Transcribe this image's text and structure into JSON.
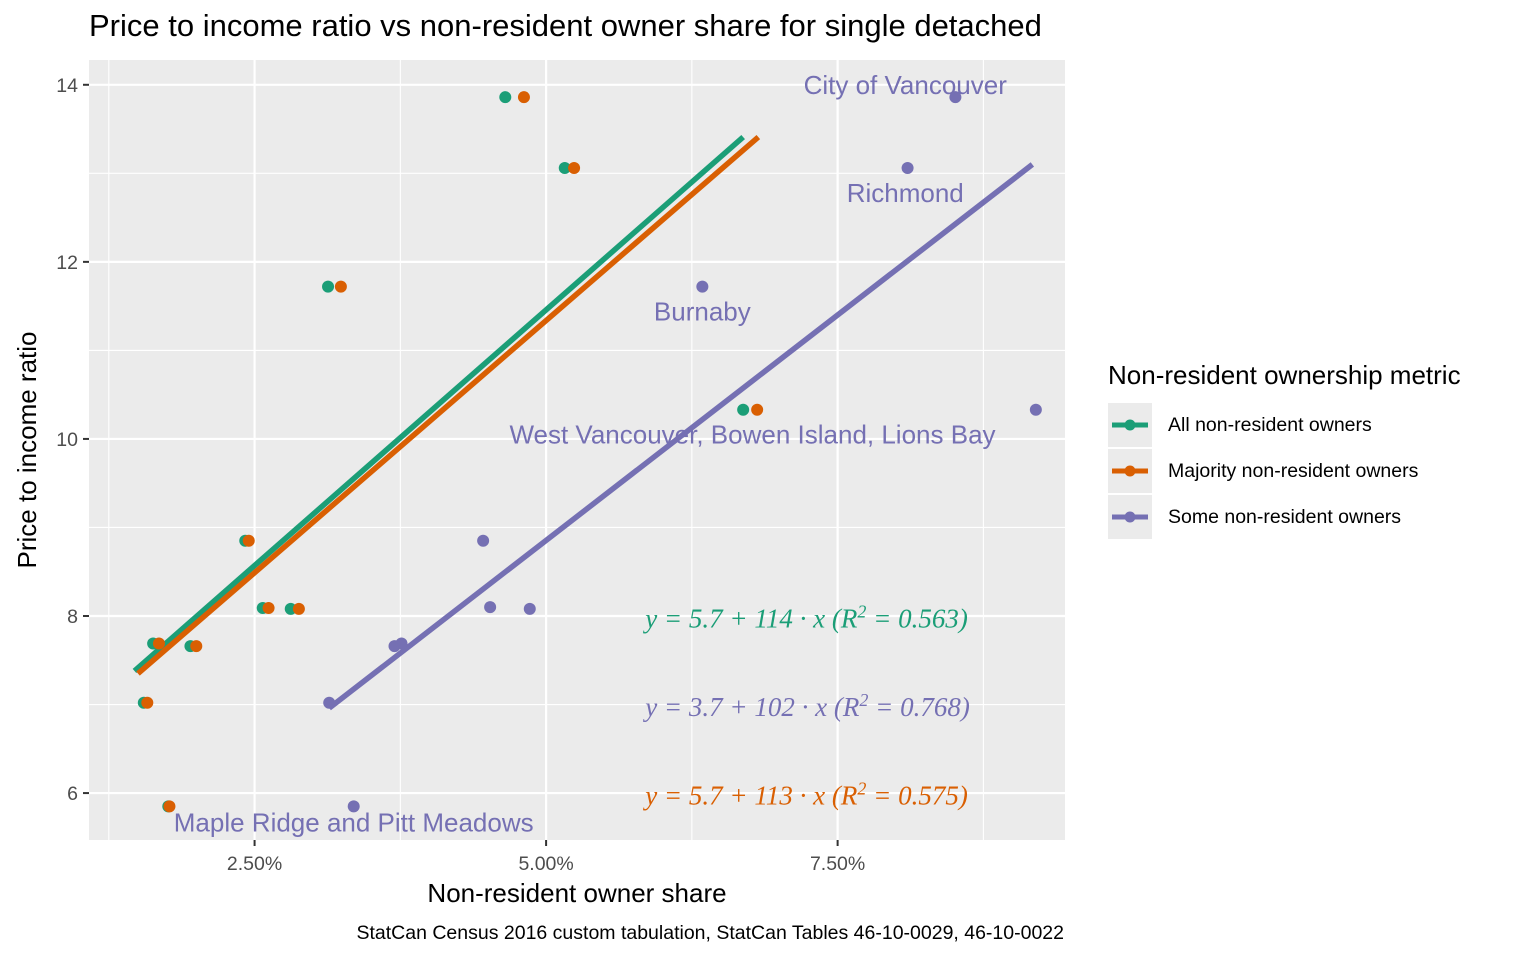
{
  "chart_data": {
    "type": "scatter",
    "title": "Price to income ratio vs non-resident owner share for single detached",
    "xlabel": "Non-resident owner share",
    "ylabel": "Price to income ratio",
    "caption": "StatCan Census 2016 custom tabulation, StatCan Tables 46-10-0029, 46-10-0022",
    "xlim": [
      0.0108,
      0.0945
    ],
    "ylim": [
      5.47,
      14.28
    ],
    "x_ticks": [
      0.025,
      0.05,
      0.075
    ],
    "x_tick_labels": [
      "2.50%",
      "5.00%",
      "7.50%"
    ],
    "y_ticks": [
      6,
      8,
      10,
      12,
      14
    ],
    "y_tick_labels": [
      "6",
      "8",
      "10",
      "12",
      "14"
    ],
    "grid": true,
    "legend": {
      "title": "Non-resident ownership metric",
      "position": "right"
    },
    "series": [
      {
        "name": "All non-resident owners",
        "color": "#1b9e77",
        "points": [
          [
            0.0155,
            7.02
          ],
          [
            0.0163,
            7.69
          ],
          [
            0.0176,
            5.85
          ],
          [
            0.0195,
            7.66
          ],
          [
            0.0242,
            8.85
          ],
          [
            0.0257,
            8.09
          ],
          [
            0.0281,
            8.08
          ],
          [
            0.0313,
            11.72
          ],
          [
            0.0465,
            13.86
          ],
          [
            0.0516,
            13.06
          ],
          [
            0.0669,
            10.33
          ]
        ],
        "fit": {
          "x": [
            0.0147,
            0.0669
          ],
          "y": [
            7.38,
            13.41
          ]
        }
      },
      {
        "name": "Majority non-resident owners",
        "color": "#d95f02",
        "points": [
          [
            0.0158,
            7.02
          ],
          [
            0.0168,
            7.69
          ],
          [
            0.0177,
            5.85
          ],
          [
            0.02,
            7.66
          ],
          [
            0.0245,
            8.85
          ],
          [
            0.0262,
            8.09
          ],
          [
            0.0288,
            8.08
          ],
          [
            0.0324,
            11.72
          ],
          [
            0.0481,
            13.86
          ],
          [
            0.0524,
            13.06
          ],
          [
            0.0681,
            10.33
          ]
        ],
        "fit": {
          "x": [
            0.015,
            0.0682
          ],
          "y": [
            7.35,
            13.41
          ]
        }
      },
      {
        "name": "Some non-resident owners",
        "color": "#7570b3",
        "points": [
          [
            0.0314,
            7.02
          ],
          [
            0.0335,
            5.85
          ],
          [
            0.037,
            7.66
          ],
          [
            0.0376,
            7.69
          ],
          [
            0.0446,
            8.85
          ],
          [
            0.0452,
            8.1
          ],
          [
            0.0486,
            8.08
          ],
          [
            0.0634,
            11.72
          ],
          [
            0.081,
            13.06
          ],
          [
            0.0851,
            13.86
          ],
          [
            0.092,
            10.33
          ]
        ],
        "fit": {
          "x": [
            0.0314,
            0.0917
          ],
          "y": [
            6.96,
            13.1
          ]
        }
      }
    ],
    "labels": [
      {
        "text": "City of Vancouver",
        "x": 0.0808,
        "y": 14.0
      },
      {
        "text": "Richmond",
        "x": 0.0808,
        "y": 12.78
      },
      {
        "text": "Burnaby",
        "x": 0.0634,
        "y": 11.44
      },
      {
        "text": "West Vancouver, Bowen Island, Lions Bay",
        "x": 0.0677,
        "y": 10.05
      },
      {
        "text": "Maple Ridge and Pitt Meadows",
        "x": 0.0335,
        "y": 5.67
      }
    ],
    "equations": [
      {
        "series": "All non-resident owners",
        "a": "5.7",
        "b": "114",
        "r2": "0.563",
        "x": 0.0585,
        "y": 7.97
      },
      {
        "series": "Some non-resident owners",
        "a": "3.7",
        "b": "102",
        "r2": "0.768",
        "x": 0.0585,
        "y": 6.97
      },
      {
        "series": "Majority non-resident owners",
        "a": "5.7",
        "b": "113",
        "r2": "0.575",
        "x": 0.0585,
        "y": 5.97
      }
    ]
  }
}
